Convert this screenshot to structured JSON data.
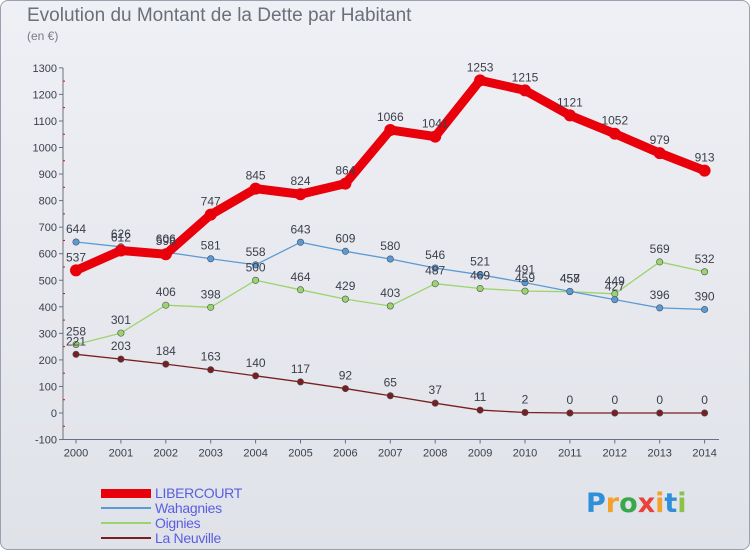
{
  "title": "Evolution du Montant de la Dette par Habitant",
  "subtitle": "(en €)",
  "chart_data": {
    "type": "line",
    "title": "Evolution du Montant de la Dette par Habitant",
    "subtitle": "(en €)",
    "x": [
      "2000",
      "2001",
      "2002",
      "2003",
      "2004",
      "2005",
      "2006",
      "2007",
      "2008",
      "2009",
      "2010",
      "2011",
      "2012",
      "2013",
      "2014"
    ],
    "ylim": [
      -100,
      1300
    ],
    "yticks": [
      -100,
      0,
      100,
      200,
      300,
      400,
      500,
      600,
      700,
      800,
      900,
      1000,
      1100,
      1200,
      1300
    ],
    "grid": false,
    "legend_position": "bottom-left",
    "series": [
      {
        "name": "LIBERCOURT",
        "color": "#e8000b",
        "values": [
          537,
          612,
          598,
          747,
          845,
          824,
          864,
          1066,
          1041,
          1253,
          1215,
          1121,
          1052,
          979,
          913
        ],
        "labels": [
          "537",
          "612",
          "598",
          "747",
          "845",
          "824",
          "864",
          "1066",
          "1041",
          "1253",
          "1215",
          "1121",
          "1052",
          "979",
          "913"
        ]
      },
      {
        "name": "Wahagnies",
        "color": "#5b9bd5",
        "values": [
          644,
          626,
          606,
          581,
          558,
          643,
          609,
          580,
          546,
          521,
          491,
          458,
          427,
          396,
          390
        ],
        "labels": [
          "644",
          "626",
          "606",
          "581",
          "558",
          "643",
          "609",
          "580",
          "546",
          "521",
          "491",
          "458",
          "427",
          "396",
          "390"
        ]
      },
      {
        "name": "Oignies",
        "color": "#9cd46c",
        "values": [
          258,
          301,
          406,
          398,
          500,
          464,
          429,
          403,
          487,
          469,
          459,
          457,
          449,
          569,
          532
        ],
        "labels": [
          "258",
          "301",
          "406",
          "398",
          "500",
          "464",
          "429",
          "403",
          "487",
          "469",
          "459",
          "457",
          "449",
          "569",
          "532"
        ]
      },
      {
        "name": "La Neuville",
        "color": "#7a1f1f",
        "values": [
          221,
          203,
          184,
          163,
          140,
          117,
          92,
          65,
          37,
          11,
          2,
          0,
          0,
          0,
          0
        ],
        "labels": [
          "221",
          "203",
          "184",
          "163",
          "140",
          "117",
          "92",
          "65",
          "37",
          "11",
          "2",
          "0",
          "0",
          "0",
          "0"
        ]
      }
    ]
  },
  "logo": {
    "letters": [
      "P",
      "r",
      "o",
      "x",
      "i",
      "t",
      "i"
    ],
    "colors": [
      "#2f8fd8",
      "#f3a12b",
      "#3aa74a",
      "#e8423a",
      "#f3a12b",
      "#2f8fd8",
      "#8bc34a"
    ]
  }
}
